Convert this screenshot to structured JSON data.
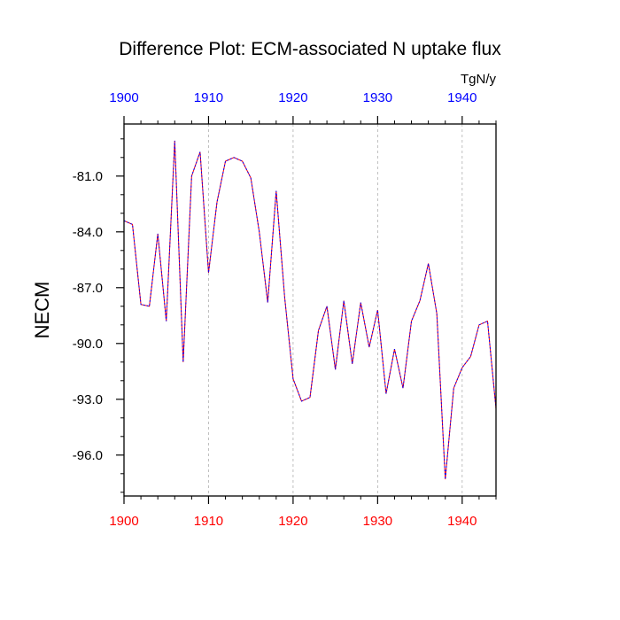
{
  "chart_data": {
    "type": "line",
    "title": "Difference Plot: ECM-associated N uptake flux",
    "units": "TgN/y",
    "ylabel": "NECM",
    "xlabel": "",
    "xlim": [
      1900,
      1944
    ],
    "ylim": [
      -98.2,
      -78.2
    ],
    "grid": "vertical-dashed",
    "x_ticks": [
      1900,
      1910,
      1920,
      1930,
      1940
    ],
    "x_tick_labels": [
      "1900",
      "1910",
      "1920",
      "1930",
      "1940"
    ],
    "y_ticks": [
      -81.0,
      -84.0,
      -87.0,
      -90.0,
      -93.0,
      -96.0
    ],
    "y_tick_labels": [
      "-81.0",
      "-84.0",
      "-87.0",
      "-90.0",
      "-93.0",
      "-96.0"
    ],
    "colors": {
      "line_primary": "#ff0000",
      "line_overlay": "#0000ff",
      "top_tick_labels": "#0000ff",
      "bottom_tick_labels": "#ff0000",
      "grid": "#b0b0b0"
    },
    "x": [
      1900,
      1901,
      1902,
      1903,
      1904,
      1905,
      1906,
      1907,
      1908,
      1909,
      1910,
      1911,
      1912,
      1913,
      1914,
      1915,
      1916,
      1917,
      1918,
      1919,
      1920,
      1921,
      1922,
      1923,
      1924,
      1925,
      1926,
      1927,
      1928,
      1929,
      1930,
      1931,
      1932,
      1933,
      1934,
      1935,
      1936,
      1937,
      1938,
      1939,
      1940,
      1941,
      1942,
      1943,
      1944
    ],
    "series": [
      {
        "values": [
          -83.4,
          -83.6,
          -87.9,
          -88.0,
          -84.1,
          -88.8,
          -79.1,
          -91.0,
          -81.0,
          -79.7,
          -86.2,
          -82.4,
          -80.2,
          -80.0,
          -80.2,
          -81.1,
          -84.0,
          -87.8,
          -81.8,
          -87.5,
          -91.9,
          -93.1,
          -92.9,
          -89.3,
          -88.0,
          -91.4,
          -87.7,
          -91.1,
          -87.8,
          -90.2,
          -88.2,
          -92.7,
          -90.3,
          -92.4,
          -88.8,
          -87.7,
          -85.7,
          -88.4,
          -97.3,
          -92.4,
          -91.3,
          -90.7,
          -89.0,
          -88.8,
          -93.5
        ]
      }
    ]
  }
}
